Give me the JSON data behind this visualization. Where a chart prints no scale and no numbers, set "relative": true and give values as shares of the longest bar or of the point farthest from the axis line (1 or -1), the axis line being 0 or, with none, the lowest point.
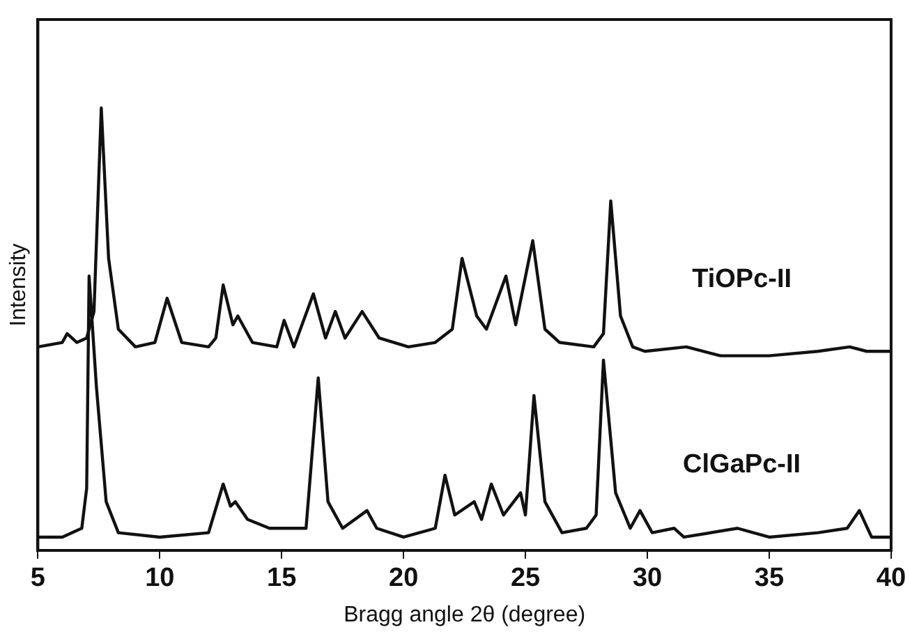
{
  "chart_data": {
    "type": "line",
    "xlabel": "Bragg angle 2θ (degree)",
    "ylabel": "Intensity",
    "relative": true,
    "xlim": [
      5,
      40
    ],
    "xticks": [
      5,
      10,
      15,
      20,
      25,
      30,
      35,
      40
    ],
    "grid": false,
    "legend": false,
    "marker": "none",
    "line_style": "solid",
    "series": [
      {
        "name": "TiOPc-II",
        "color": "#111111",
        "x": [
          5.0,
          6.0,
          6.2,
          6.6,
          7.0,
          7.3,
          7.6,
          7.9,
          8.3,
          9.0,
          9.8,
          10.3,
          10.9,
          12.0,
          12.3,
          12.6,
          13.0,
          13.2,
          13.8,
          14.8,
          15.1,
          15.5,
          16.3,
          16.8,
          17.2,
          17.6,
          18.3,
          19.0,
          20.2,
          21.3,
          22.0,
          22.4,
          23.0,
          23.4,
          24.2,
          24.6,
          25.3,
          25.8,
          26.4,
          27.8,
          28.2,
          28.5,
          28.9,
          29.4,
          29.9,
          31.6,
          33.0,
          35.0,
          37.0,
          38.3,
          39.0,
          40.0
        ],
        "values": [
          0.46,
          0.47,
          0.49,
          0.47,
          0.48,
          0.54,
          1.0,
          0.66,
          0.5,
          0.46,
          0.47,
          0.57,
          0.47,
          0.46,
          0.48,
          0.6,
          0.51,
          0.53,
          0.47,
          0.46,
          0.52,
          0.46,
          0.58,
          0.48,
          0.54,
          0.48,
          0.54,
          0.48,
          0.46,
          0.47,
          0.5,
          0.66,
          0.53,
          0.5,
          0.62,
          0.51,
          0.7,
          0.5,
          0.47,
          0.46,
          0.49,
          0.79,
          0.53,
          0.46,
          0.45,
          0.46,
          0.44,
          0.44,
          0.45,
          0.46,
          0.45,
          0.45
        ]
      },
      {
        "name": "ClGaPc-II",
        "color": "#111111",
        "x": [
          5.0,
          6.0,
          6.8,
          7.0,
          7.1,
          7.4,
          7.8,
          8.3,
          10.0,
          12.0,
          12.6,
          12.9,
          13.1,
          13.6,
          14.5,
          16.0,
          16.5,
          16.9,
          17.5,
          18.5,
          18.9,
          20.0,
          21.3,
          21.7,
          22.1,
          22.9,
          23.2,
          23.6,
          24.1,
          24.8,
          25.0,
          25.35,
          25.8,
          26.5,
          27.5,
          27.9,
          28.2,
          28.7,
          29.3,
          29.7,
          30.2,
          31.1,
          31.5,
          33.7,
          35.0,
          37.0,
          38.2,
          38.7,
          39.2,
          40.0
        ],
        "values": [
          0.03,
          0.03,
          0.05,
          0.14,
          0.62,
          0.37,
          0.11,
          0.04,
          0.03,
          0.04,
          0.15,
          0.1,
          0.11,
          0.07,
          0.05,
          0.05,
          0.39,
          0.11,
          0.05,
          0.09,
          0.05,
          0.03,
          0.05,
          0.17,
          0.08,
          0.11,
          0.07,
          0.15,
          0.08,
          0.13,
          0.08,
          0.35,
          0.11,
          0.04,
          0.05,
          0.08,
          0.43,
          0.13,
          0.05,
          0.09,
          0.04,
          0.05,
          0.03,
          0.05,
          0.03,
          0.04,
          0.05,
          0.09,
          0.03,
          0.03
        ]
      }
    ]
  }
}
